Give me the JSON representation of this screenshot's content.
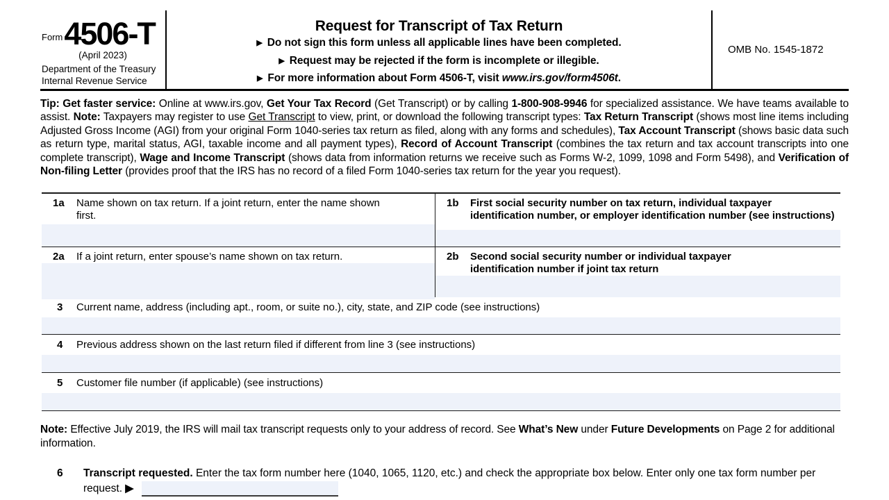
{
  "colors": {
    "field_bg": "#eef2fa",
    "line": "#1a1a1a"
  },
  "header": {
    "form_word": "Form",
    "form_number": "4506-T",
    "revision": "(April 2023)",
    "agency_line1": "Department of the Treasury",
    "agency_line2": "Internal Revenue Service",
    "title": "Request for Transcript of Tax Return",
    "bullets": [
      {
        "marker": "▶",
        "segments": [
          {
            "t": "Do not sign this form unless all applicable lines have been completed.",
            "b": true
          }
        ]
      },
      {
        "marker": "▶",
        "segments": [
          {
            "t": "Request may be rejected if the form is incomplete or illegible.",
            "b": true
          }
        ]
      },
      {
        "marker": "▶",
        "segments": [
          {
            "t": "For more information about Form 4506-T, visit ",
            "b": true
          },
          {
            "t": "www.irs.gov/form4506t",
            "b": true,
            "i": true
          },
          {
            "t": ".",
            "b": true
          }
        ]
      }
    ],
    "omb": "OMB No. 1545-1872"
  },
  "tip": {
    "segments": [
      {
        "t": "Tip: Get faster service: ",
        "b": true
      },
      {
        "t": "Online at www.irs.gov, "
      },
      {
        "t": "Get Your Tax Record",
        "b": true
      },
      {
        "t": " (Get Transcript) or by calling "
      },
      {
        "t": "1-800-908-9946",
        "b": true
      },
      {
        "t": " for specialized assistance. We have teams available to assist. "
      },
      {
        "t": "Note:",
        "b": true
      },
      {
        "t": " Taxpayers may register to use "
      },
      {
        "t": "Get Transcript",
        "u": true
      },
      {
        "t": " to view, print, or download the following transcript types: "
      },
      {
        "t": "Tax Return Transcript",
        "b": true
      },
      {
        "t": " (shows most line items including Adjusted Gross Income (AGI) from your original Form 1040-series tax return as filed, along with any forms and schedules), "
      },
      {
        "t": "Tax Account Transcript",
        "b": true
      },
      {
        "t": " (shows basic data such as return type, marital status, AGI, taxable income and all payment types), "
      },
      {
        "t": "Record of Account Transcript",
        "b": true
      },
      {
        "t": " (combines the tax return and tax account transcripts into one complete transcript), "
      },
      {
        "t": "Wage and Income Transcript",
        "b": true
      },
      {
        "t": " (shows data from information returns we receive such as Forms W-2, 1099, 1098 and Form 5498), and "
      },
      {
        "t": "Verification of Non-filing Letter",
        "b": true
      },
      {
        "t": " (provides proof that the IRS has no record of a filed Form 1040-series tax return for the year you request)."
      }
    ]
  },
  "table": {
    "row1": {
      "left": {
        "num": "1a",
        "label": "Name shown on tax return. If a joint return, enter the name shown first."
      },
      "right": {
        "num": "1b",
        "label": "First social security number on tax return, individual taxpayer identification number, or employer identification number (see instructions)"
      }
    },
    "row2": {
      "left": {
        "num": "2a",
        "label": "If a joint return, enter spouse’s name shown on tax return."
      },
      "right": {
        "num": "2b",
        "label": "Second social security number or individual taxpayer identification number if joint tax return"
      }
    },
    "row3": {
      "num": "3",
      "label": "Current name, address (including apt., room, or suite no.), city, state, and ZIP code (see instructions)"
    },
    "row4": {
      "num": "4",
      "label": "Previous address shown on the last return filed if different from line 3 (see instructions)"
    },
    "row5": {
      "num": "5",
      "label": "Customer file number (if applicable) (see instructions)"
    },
    "inputs": {
      "1a": "",
      "1b": "",
      "2a": "",
      "2b": "",
      "3": "",
      "4": "",
      "5": ""
    }
  },
  "note": {
    "segments": [
      {
        "t": "Note:",
        "b": true
      },
      {
        "t": " Effective July 2019, the IRS will mail tax transcript requests only to your address of record. See "
      },
      {
        "t": "What’s New",
        "b": true
      },
      {
        "t": " under "
      },
      {
        "t": "Future Developments",
        "b": true
      },
      {
        "t": " on Page 2 for additional information."
      }
    ]
  },
  "line6": {
    "num": "6",
    "segments": [
      {
        "t": "Transcript requested. ",
        "b": true
      },
      {
        "t": "Enter the tax form number here (1040, 1065, 1120, etc.) and check the appropriate box below. Enter only one tax form number per request. "
      },
      {
        "t": "▶",
        "b": true
      }
    ],
    "input_value": ""
  }
}
